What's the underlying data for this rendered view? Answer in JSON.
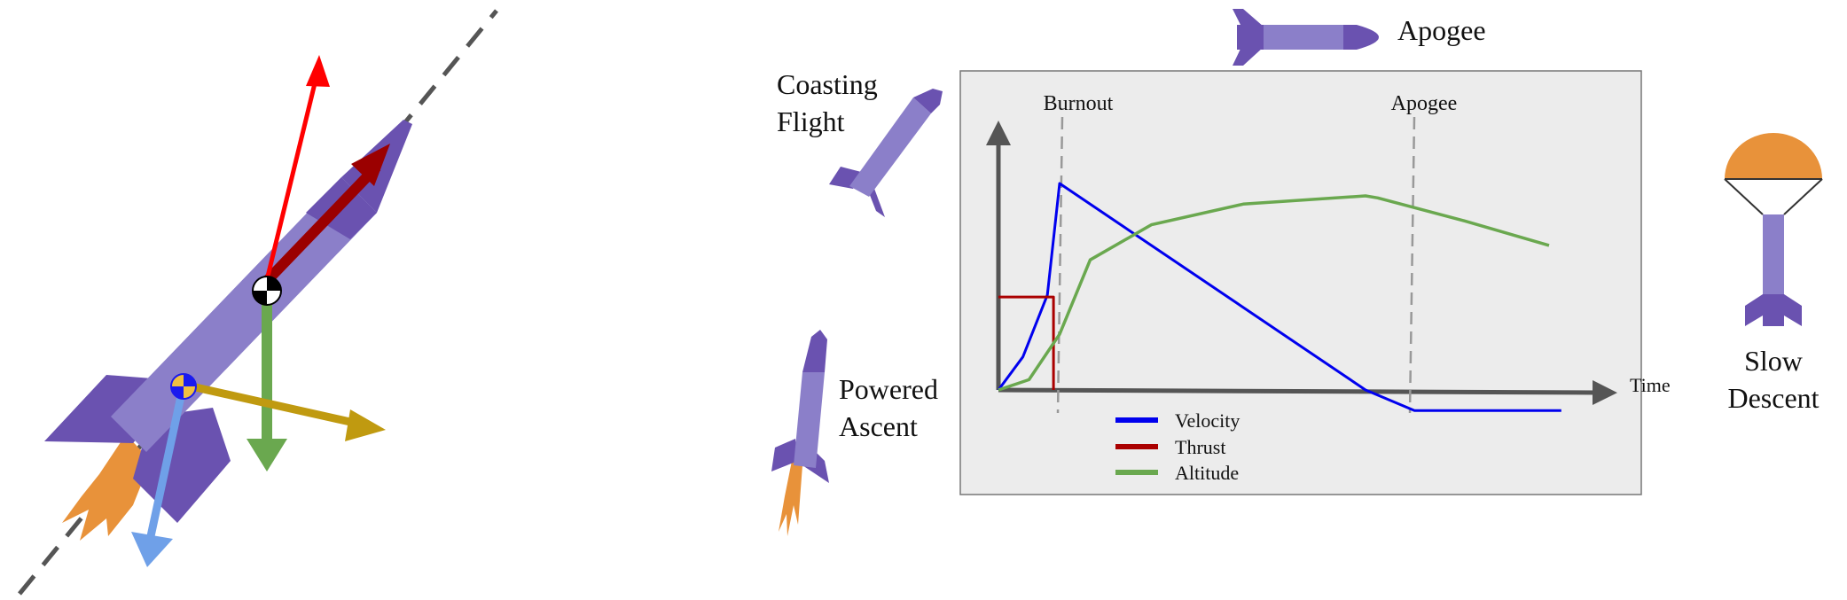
{
  "stages": {
    "coasting": [
      "Coasting",
      "Flight"
    ],
    "powered": [
      "Powered",
      "Ascent"
    ],
    "apogee": "Apogee",
    "descent": [
      "Slow",
      "Descent"
    ]
  },
  "colors": {
    "rocket_body": "#8b7fc9",
    "rocket_dark": "#6a52b0",
    "flame": "#e8923a",
    "lift": "#ff0000",
    "thrust_arrow": "#9b0000",
    "weight": "#6aa84f",
    "drag": "#6fa0e8",
    "normal": "#c09a10",
    "parachute": "#e8923a",
    "panel": "#ececec"
  },
  "chart_data": {
    "type": "line",
    "xlabel": "Time",
    "annotations": [
      "Burnout",
      "Apogee"
    ],
    "legend": [
      "Velocity",
      "Thrust",
      "Altitude"
    ],
    "series": [
      {
        "name": "Velocity",
        "color": "#0000ee",
        "points": [
          [
            0,
            0
          ],
          [
            0.04,
            0.16
          ],
          [
            0.08,
            0.46
          ],
          [
            0.1,
            1.0
          ],
          [
            0.6,
            0.0
          ],
          [
            0.68,
            -0.1
          ],
          [
            0.92,
            -0.1
          ]
        ]
      },
      {
        "name": "Thrust",
        "color": "#aa0000",
        "points": [
          [
            0,
            0.45
          ],
          [
            0.09,
            0.45
          ],
          [
            0.09,
            0.0
          ]
        ]
      },
      {
        "name": "Altitude",
        "color": "#6aa84f",
        "points": [
          [
            0,
            0
          ],
          [
            0.05,
            0.05
          ],
          [
            0.1,
            0.27
          ],
          [
            0.15,
            0.63
          ],
          [
            0.25,
            0.8
          ],
          [
            0.4,
            0.9
          ],
          [
            0.6,
            0.94
          ],
          [
            0.62,
            0.93
          ],
          [
            0.76,
            0.82
          ],
          [
            0.9,
            0.7
          ]
        ]
      }
    ]
  }
}
